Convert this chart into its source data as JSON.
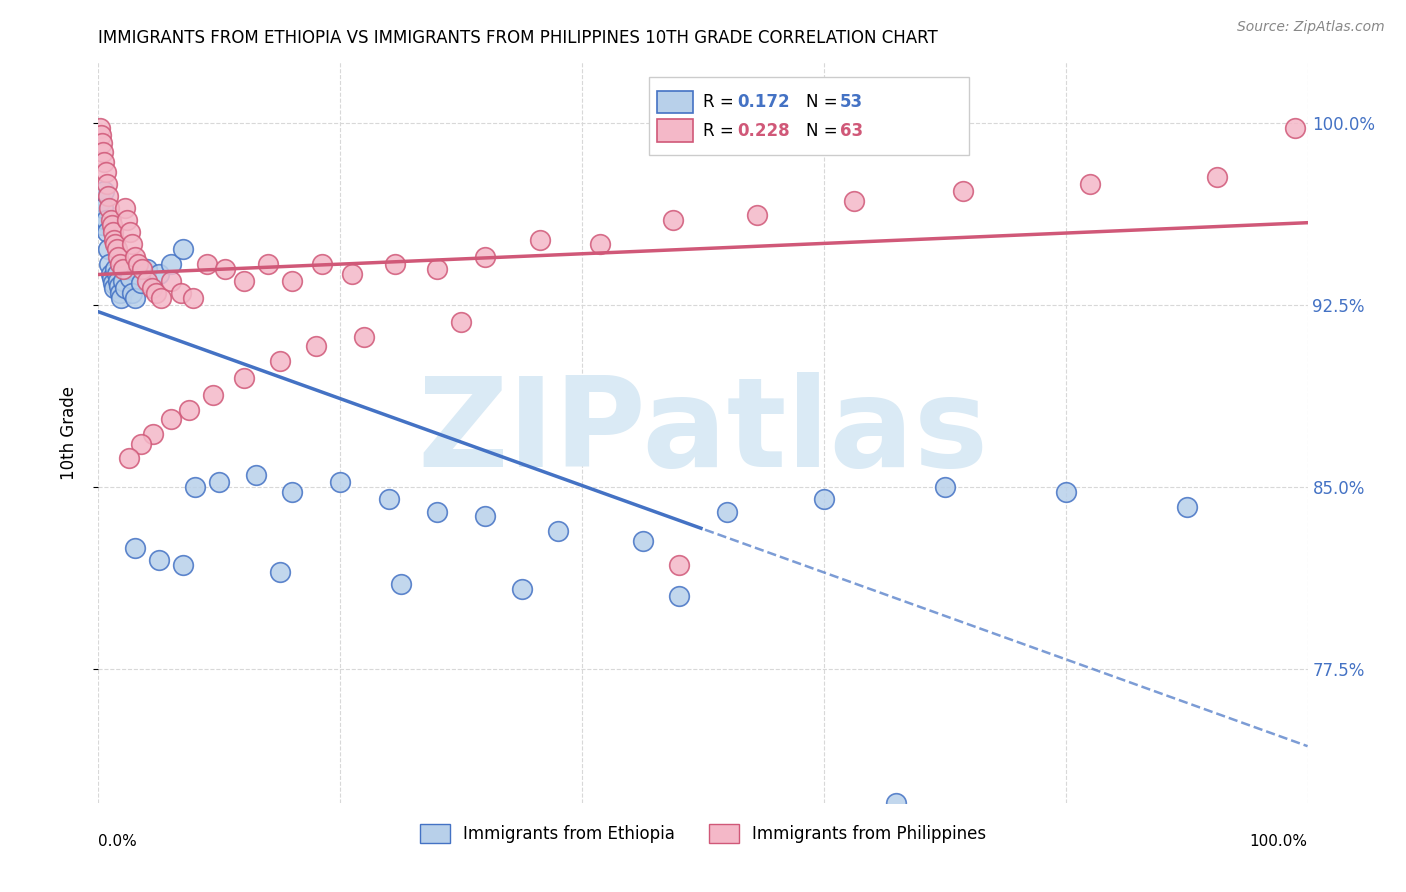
{
  "title": "IMMIGRANTS FROM ETHIOPIA VS IMMIGRANTS FROM PHILIPPINES 10TH GRADE CORRELATION CHART",
  "source": "Source: ZipAtlas.com",
  "ylabel": "10th Grade",
  "r_ethiopia": 0.172,
  "n_ethiopia": 53,
  "r_philippines": 0.228,
  "n_philippines": 63,
  "color_ethiopia_fill": "#b8d0ea",
  "color_ethiopia_edge": "#4472c4",
  "color_philippines_fill": "#f4b8c8",
  "color_philippines_edge": "#d05878",
  "color_right_axis": "#4472c4",
  "background_color": "#ffffff",
  "grid_color": "#d8d8d8",
  "xlim": [
    0.0,
    1.0
  ],
  "ylim": [
    0.72,
    1.025
  ],
  "ytick_vals": [
    1.0,
    0.925,
    0.85,
    0.775
  ],
  "ytick_labels": [
    "100.0%",
    "92.5%",
    "85.0%",
    "77.5%"
  ],
  "ethiopia_x": [
    0.001,
    0.002,
    0.003,
    0.004,
    0.005,
    0.006,
    0.007,
    0.008,
    0.009,
    0.01,
    0.011,
    0.012,
    0.013,
    0.014,
    0.015,
    0.016,
    0.017,
    0.018,
    0.019,
    0.02,
    0.022,
    0.024,
    0.026,
    0.028,
    0.03,
    0.035,
    0.04,
    0.05,
    0.06,
    0.07,
    0.08,
    0.1,
    0.13,
    0.16,
    0.2,
    0.24,
    0.28,
    0.32,
    0.38,
    0.45,
    0.52,
    0.6,
    0.7,
    0.8,
    0.9,
    0.03,
    0.05,
    0.07,
    0.15,
    0.25,
    0.35,
    0.48,
    0.66
  ],
  "ethiopia_y": [
    0.96,
    0.968,
    0.958,
    0.965,
    0.972,
    0.96,
    0.955,
    0.948,
    0.942,
    0.938,
    0.936,
    0.934,
    0.932,
    0.94,
    0.938,
    0.935,
    0.933,
    0.93,
    0.928,
    0.935,
    0.932,
    0.94,
    0.936,
    0.93,
    0.928,
    0.934,
    0.94,
    0.938,
    0.942,
    0.948,
    0.85,
    0.852,
    0.855,
    0.848,
    0.852,
    0.845,
    0.84,
    0.838,
    0.832,
    0.828,
    0.84,
    0.845,
    0.85,
    0.848,
    0.842,
    0.825,
    0.82,
    0.818,
    0.815,
    0.81,
    0.808,
    0.805,
    0.72
  ],
  "philippines_x": [
    0.001,
    0.002,
    0.003,
    0.004,
    0.005,
    0.006,
    0.007,
    0.008,
    0.009,
    0.01,
    0.011,
    0.012,
    0.013,
    0.014,
    0.015,
    0.016,
    0.018,
    0.02,
    0.022,
    0.024,
    0.026,
    0.028,
    0.03,
    0.033,
    0.036,
    0.04,
    0.044,
    0.048,
    0.052,
    0.06,
    0.068,
    0.078,
    0.09,
    0.105,
    0.12,
    0.14,
    0.16,
    0.185,
    0.21,
    0.245,
    0.28,
    0.32,
    0.365,
    0.415,
    0.475,
    0.545,
    0.625,
    0.715,
    0.82,
    0.925,
    0.99,
    0.3,
    0.22,
    0.18,
    0.15,
    0.12,
    0.095,
    0.075,
    0.06,
    0.045,
    0.035,
    0.025,
    0.48
  ],
  "philippines_y": [
    0.998,
    0.995,
    0.992,
    0.988,
    0.984,
    0.98,
    0.975,
    0.97,
    0.965,
    0.96,
    0.958,
    0.955,
    0.952,
    0.95,
    0.948,
    0.945,
    0.942,
    0.94,
    0.965,
    0.96,
    0.955,
    0.95,
    0.945,
    0.942,
    0.94,
    0.935,
    0.932,
    0.93,
    0.928,
    0.935,
    0.93,
    0.928,
    0.942,
    0.94,
    0.935,
    0.942,
    0.935,
    0.942,
    0.938,
    0.942,
    0.94,
    0.945,
    0.952,
    0.95,
    0.96,
    0.962,
    0.968,
    0.972,
    0.975,
    0.978,
    0.998,
    0.918,
    0.912,
    0.908,
    0.902,
    0.895,
    0.888,
    0.882,
    0.878,
    0.872,
    0.868,
    0.862,
    0.818
  ]
}
